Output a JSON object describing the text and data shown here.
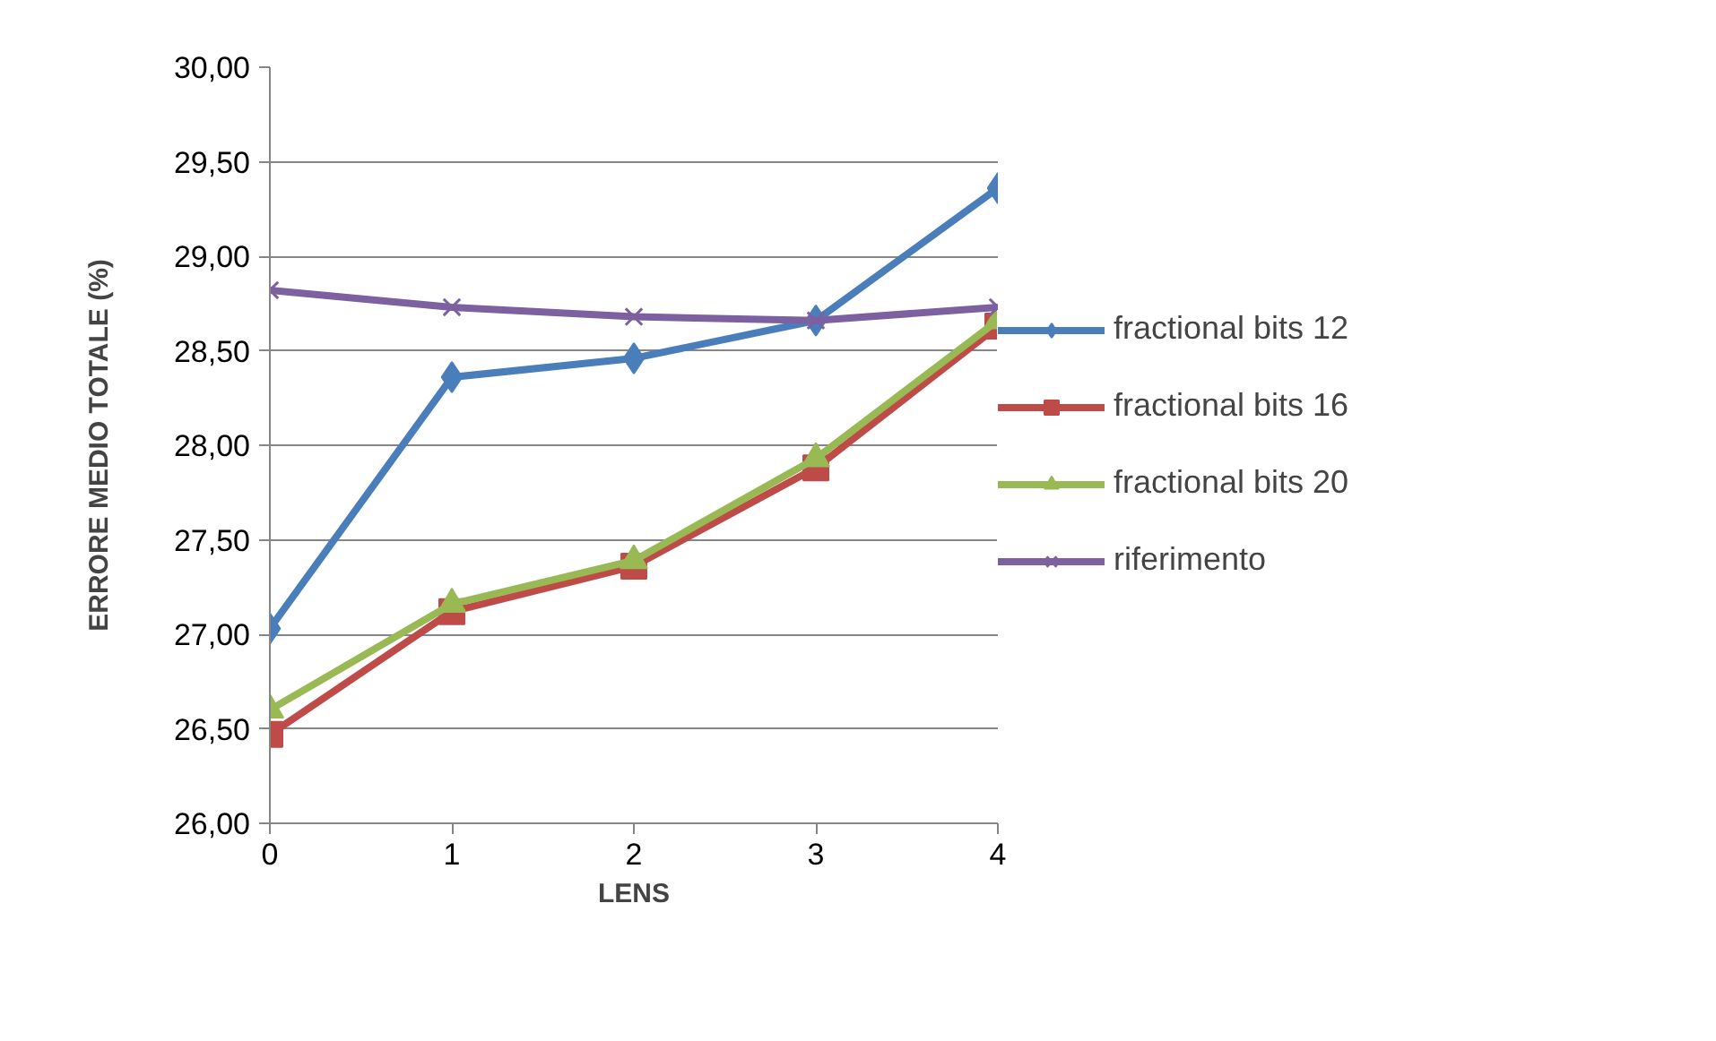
{
  "chart_data": {
    "type": "line",
    "xlabel": "LENS",
    "ylabel": "ERRORE MEDIO TOTALE (%)",
    "x": [
      0,
      1,
      2,
      3,
      4
    ],
    "xlim": [
      0,
      4
    ],
    "xticks": [
      0,
      1,
      2,
      3,
      4
    ],
    "ylim": [
      26,
      30
    ],
    "yticks": [
      {
        "value": 26,
        "label": "26,00"
      },
      {
        "value": 26.5,
        "label": "26,50"
      },
      {
        "value": 27,
        "label": "27,00"
      },
      {
        "value": 27.5,
        "label": "27,50"
      },
      {
        "value": 28,
        "label": "28,00"
      },
      {
        "value": 28.5,
        "label": "28,50"
      },
      {
        "value": 29,
        "label": "29,00"
      },
      {
        "value": 29.5,
        "label": "29,50"
      },
      {
        "value": 30,
        "label": "30,00"
      }
    ],
    "grid": "y",
    "legend": "right",
    "series": [
      {
        "name": "fractional bits 12",
        "color": "#4a7ebb",
        "marker": "diamond",
        "values": [
          27.03,
          28.36,
          28.46,
          28.66,
          29.36
        ]
      },
      {
        "name": "fractional bits 16",
        "color": "#be4b48",
        "marker": "square",
        "values": [
          26.47,
          27.12,
          27.36,
          27.88,
          28.63
        ]
      },
      {
        "name": "fractional bits 20",
        "color": "#98b954",
        "marker": "triangle",
        "values": [
          26.6,
          27.16,
          27.39,
          27.93,
          28.66
        ]
      },
      {
        "name": "riferimento",
        "color": "#7d60a0",
        "marker": "cross",
        "values": [
          28.82,
          28.73,
          28.68,
          28.66,
          28.73
        ]
      }
    ]
  }
}
